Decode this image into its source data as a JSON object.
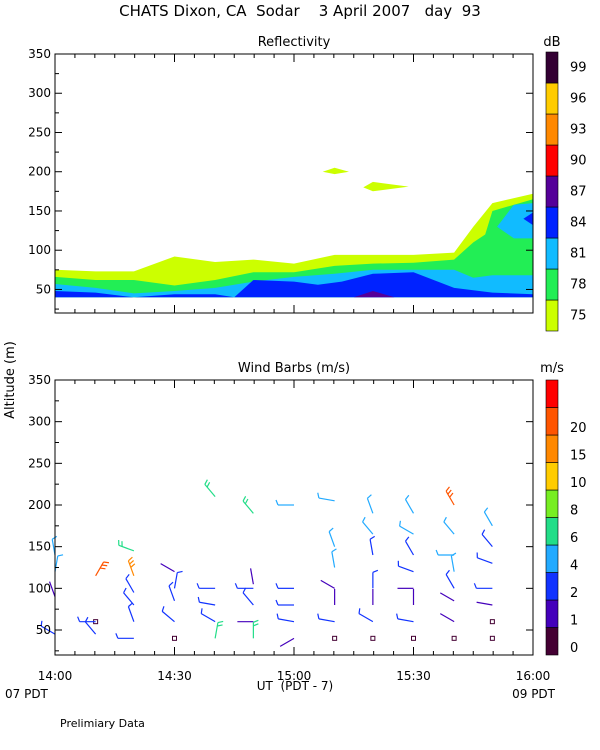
{
  "title": "CHATS Dixon, CA  Sodar    3 April 2007   day  93",
  "footer_note": "Prelimiary Data",
  "shared_ylabel": "Altitude (m)",
  "chart_data": [
    {
      "name": "reflectivity",
      "type": "heatmap",
      "title": "Reflectivity",
      "ylim": [
        20,
        350
      ],
      "xlim": [
        14.0,
        16.0
      ],
      "y_ticks": [
        50,
        100,
        150,
        200,
        250,
        300,
        350
      ],
      "colorbar": {
        "unit": "dB",
        "levels": [
          "75",
          "78",
          "81",
          "84",
          "87",
          "90",
          "93",
          "96",
          "99"
        ],
        "colors": [
          "#ccff00",
          "#22ee55",
          "#11bbff",
          "#0022ff",
          "#550099",
          "#ff0000",
          "#ff8800",
          "#ffcc00",
          "#330033"
        ]
      },
      "contours": [
        {
          "level": "75",
          "color": "#ccff00",
          "points": [
            [
              14.0,
              75
            ],
            [
              14.17,
              73
            ],
            [
              14.33,
              73
            ],
            [
              14.5,
              92
            ],
            [
              14.67,
              85
            ],
            [
              14.83,
              88
            ],
            [
              15.0,
              83
            ],
            [
              15.17,
              94
            ],
            [
              15.33,
              94
            ],
            [
              15.5,
              94
            ],
            [
              15.67,
              97
            ],
            [
              15.75,
              130
            ],
            [
              15.83,
              160
            ],
            [
              16.0,
              172
            ],
            [
              16.0,
              40
            ],
            [
              14.0,
              40
            ]
          ]
        },
        {
          "level": "75",
          "color": "#ccff00",
          "points": [
            [
              15.12,
              200
            ],
            [
              15.17,
              205
            ],
            [
              15.23,
              200
            ],
            [
              15.17,
              197
            ]
          ]
        },
        {
          "level": "75",
          "color": "#ccff00",
          "points": [
            [
              15.29,
              180
            ],
            [
              15.33,
              187
            ],
            [
              15.48,
              181
            ],
            [
              15.33,
              175
            ]
          ]
        },
        {
          "level": "78",
          "color": "#22ee55",
          "points": [
            [
              14.0,
              66
            ],
            [
              14.17,
              62
            ],
            [
              14.33,
              62
            ],
            [
              14.5,
              55
            ],
            [
              14.67,
              62
            ],
            [
              14.83,
              72
            ],
            [
              15.0,
              72
            ],
            [
              15.17,
              80
            ],
            [
              15.33,
              83
            ],
            [
              15.5,
              84
            ],
            [
              15.67,
              88
            ],
            [
              15.75,
              110
            ],
            [
              15.8,
              120
            ],
            [
              15.83,
              150
            ],
            [
              16.0,
              165
            ],
            [
              16.0,
              40
            ],
            [
              14.0,
              40
            ]
          ]
        },
        {
          "level": "81",
          "color": "#11bbff",
          "points": [
            [
              14.0,
              57
            ],
            [
              14.17,
              52
            ],
            [
              14.33,
              45
            ],
            [
              14.5,
              48
            ],
            [
              14.67,
              52
            ],
            [
              14.83,
              60
            ],
            [
              15.0,
              66
            ],
            [
              15.17,
              70
            ],
            [
              15.33,
              75
            ],
            [
              15.5,
              75
            ],
            [
              15.67,
              75
            ],
            [
              15.75,
              65
            ],
            [
              15.83,
              68
            ],
            [
              16.0,
              68
            ],
            [
              16.0,
              40
            ],
            [
              14.0,
              40
            ]
          ]
        },
        {
          "level": "81",
          "color": "#11bbff",
          "points": [
            [
              15.85,
              130
            ],
            [
              15.92,
              115
            ],
            [
              16.0,
              115
            ],
            [
              16.0,
              160
            ],
            [
              15.92,
              158
            ]
          ]
        },
        {
          "level": "84",
          "color": "#0022ff",
          "points": [
            [
              14.0,
              48
            ],
            [
              14.17,
              46
            ],
            [
              14.33,
              40
            ],
            [
              14.5,
              44
            ],
            [
              14.67,
              44
            ],
            [
              14.75,
              40
            ],
            [
              14.83,
              62
            ],
            [
              15.0,
              60
            ],
            [
              15.1,
              56
            ],
            [
              15.2,
              60
            ],
            [
              15.33,
              70
            ],
            [
              15.5,
              72
            ],
            [
              15.67,
              52
            ],
            [
              15.83,
              46
            ],
            [
              16.0,
              44
            ],
            [
              16.0,
              40
            ],
            [
              14.0,
              40
            ]
          ]
        },
        {
          "level": "84",
          "color": "#0022ff",
          "points": [
            [
              15.96,
              140
            ],
            [
              16.0,
              132
            ],
            [
              16.0,
              148
            ]
          ]
        },
        {
          "level": "87",
          "color": "#550099",
          "points": [
            [
              15.25,
              40
            ],
            [
              15.33,
              48
            ],
            [
              15.42,
              40
            ]
          ]
        }
      ]
    },
    {
      "name": "wind-barbs",
      "type": "scatter",
      "title": "Wind Barbs (m/s)",
      "xlabel": "UT  (PDT - 7)",
      "ylim": [
        20,
        350
      ],
      "xlim": [
        14.0,
        16.0
      ],
      "x_ticks": [
        14.0,
        14.5,
        15.0,
        15.5,
        16.0
      ],
      "x_ticklabels": [
        "14:00",
        "14:30",
        "15:00",
        "15:30",
        "16:00"
      ],
      "y_ticks": [
        50,
        100,
        150,
        200,
        250,
        300,
        350
      ],
      "left_time_label": "07 PDT",
      "right_time_label": "09 PDT",
      "colorbar": {
        "unit": "m/s",
        "levels": [
          "0",
          "1",
          "2",
          "4",
          "6",
          "8",
          "10",
          "15",
          "20"
        ],
        "colors": [
          "#440033",
          "#4400bb",
          "#1133ff",
          "#22aaff",
          "#22dd88",
          "#77ee22",
          "#ffcc00",
          "#ff8800",
          "#ff5500",
          "#ff0000"
        ]
      },
      "series": [
        {
          "t": 14.0,
          "z": [
            {
              "alt": 140,
              "spd": 4,
              "dir": 350
            },
            {
              "alt": 120,
              "spd": 4,
              "dir": 10
            },
            {
              "alt": 90,
              "spd": 1,
              "dir": 340
            },
            {
              "alt": 45,
              "spd": 2,
              "dir": 300
            }
          ]
        },
        {
          "t": 14.17,
          "z": [
            {
              "alt": 115,
              "spd": 15,
              "dir": 30
            },
            {
              "alt": 60,
              "spd": 0.5,
              "dir": 0
            },
            {
              "alt": 60,
              "spd": 2,
              "dir": 270
            },
            {
              "alt": 45,
              "spd": 2,
              "dir": 320
            }
          ]
        },
        {
          "t": 14.33,
          "z": [
            {
              "alt": 145,
              "spd": 6,
              "dir": 290
            },
            {
              "alt": 115,
              "spd": 10,
              "dir": 340
            },
            {
              "alt": 95,
              "spd": 2,
              "dir": 330
            },
            {
              "alt": 80,
              "spd": 2,
              "dir": 320
            },
            {
              "alt": 60,
              "spd": 2,
              "dir": 340
            },
            {
              "alt": 40,
              "spd": 2,
              "dir": 270
            }
          ]
        },
        {
          "t": 14.5,
          "z": [
            {
              "alt": 120,
              "spd": 1,
              "dir": 300
            },
            {
              "alt": 100,
              "spd": 2,
              "dir": 10
            },
            {
              "alt": 85,
              "spd": 2,
              "dir": 340
            },
            {
              "alt": 60,
              "spd": 2,
              "dir": 310
            },
            {
              "alt": 40,
              "spd": 0.5,
              "dir": 0
            }
          ]
        },
        {
          "t": 14.67,
          "z": [
            {
              "alt": 210,
              "spd": 6,
              "dir": 320
            },
            {
              "alt": 100,
              "spd": 2,
              "dir": 270
            },
            {
              "alt": 80,
              "spd": 2,
              "dir": 280
            },
            {
              "alt": 60,
              "spd": 2,
              "dir": 300
            },
            {
              "alt": 40,
              "spd": 6,
              "dir": 10
            }
          ]
        },
        {
          "t": 14.83,
          "z": [
            {
              "alt": 190,
              "spd": 6,
              "dir": 320
            },
            {
              "alt": 105,
              "spd": 1,
              "dir": 350
            },
            {
              "alt": 100,
              "spd": 2,
              "dir": 270
            },
            {
              "alt": 80,
              "spd": 2,
              "dir": 320
            },
            {
              "alt": 60,
              "spd": 1,
              "dir": 270
            },
            {
              "alt": 40,
              "spd": 6,
              "dir": 0
            }
          ]
        },
        {
          "t": 15.0,
          "z": [
            {
              "alt": 200,
              "spd": 4,
              "dir": 270
            },
            {
              "alt": 100,
              "spd": 2,
              "dir": 270
            },
            {
              "alt": 80,
              "spd": 2,
              "dir": 270
            },
            {
              "alt": 60,
              "spd": 2,
              "dir": 280
            },
            {
              "alt": 40,
              "spd": 1,
              "dir": 240
            }
          ]
        },
        {
          "t": 15.17,
          "z": [
            {
              "alt": 205,
              "spd": 4,
              "dir": 280
            },
            {
              "alt": 150,
              "spd": 4,
              "dir": 340
            },
            {
              "alt": 125,
              "spd": 4,
              "dir": 350
            },
            {
              "alt": 100,
              "spd": 1,
              "dir": 300
            },
            {
              "alt": 80,
              "spd": 1,
              "dir": 0
            },
            {
              "alt": 60,
              "spd": 2,
              "dir": 280
            },
            {
              "alt": 40,
              "spd": 0.5,
              "dir": 0
            }
          ]
        },
        {
          "t": 15.33,
          "z": [
            {
              "alt": 190,
              "spd": 4,
              "dir": 340
            },
            {
              "alt": 165,
              "spd": 4,
              "dir": 320
            },
            {
              "alt": 140,
              "spd": 2,
              "dir": 350
            },
            {
              "alt": 100,
              "spd": 2,
              "dir": 0
            },
            {
              "alt": 80,
              "spd": 1,
              "dir": 0
            },
            {
              "alt": 60,
              "spd": 2,
              "dir": 300
            },
            {
              "alt": 40,
              "spd": 0.5,
              "dir": 0
            }
          ]
        },
        {
          "t": 15.5,
          "z": [
            {
              "alt": 190,
              "spd": 4,
              "dir": 330
            },
            {
              "alt": 165,
              "spd": 4,
              "dir": 300
            },
            {
              "alt": 140,
              "spd": 2,
              "dir": 330
            },
            {
              "alt": 120,
              "spd": 2,
              "dir": 290
            },
            {
              "alt": 100,
              "spd": 1,
              "dir": 270
            },
            {
              "alt": 80,
              "spd": 1,
              "dir": 0
            },
            {
              "alt": 60,
              "spd": 2,
              "dir": 280
            },
            {
              "alt": 40,
              "spd": 0.5,
              "dir": 0
            }
          ]
        },
        {
          "t": 15.67,
          "z": [
            {
              "alt": 200,
              "spd": 15,
              "dir": 330
            },
            {
              "alt": 165,
              "spd": 4,
              "dir": 320
            },
            {
              "alt": 140,
              "spd": 4,
              "dir": 270
            },
            {
              "alt": 120,
              "spd": 4,
              "dir": 350
            },
            {
              "alt": 100,
              "spd": 2,
              "dir": 330
            },
            {
              "alt": 85,
              "spd": 1,
              "dir": 300
            },
            {
              "alt": 60,
              "spd": 1,
              "dir": 300
            },
            {
              "alt": 40,
              "spd": 0.5,
              "dir": 0
            }
          ]
        },
        {
          "t": 15.83,
          "z": [
            {
              "alt": 175,
              "spd": 4,
              "dir": 330
            },
            {
              "alt": 150,
              "spd": 2,
              "dir": 320
            },
            {
              "alt": 130,
              "spd": 2,
              "dir": 290
            },
            {
              "alt": 100,
              "spd": 2,
              "dir": 270
            },
            {
              "alt": 80,
              "spd": 1,
              "dir": 280
            },
            {
              "alt": 60,
              "spd": 0.5,
              "dir": 0
            },
            {
              "alt": 40,
              "spd": 0.5,
              "dir": 0
            }
          ]
        }
      ]
    }
  ]
}
